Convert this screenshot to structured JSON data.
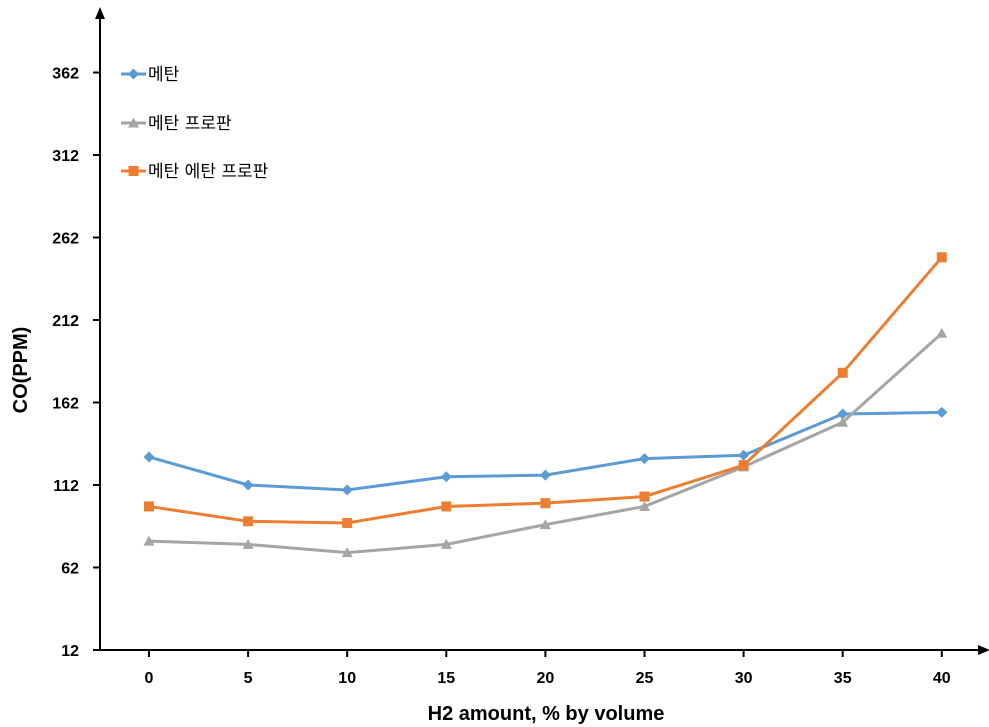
{
  "chart_data": {
    "type": "line",
    "xlabel": "H2 amount, % by volume",
    "ylabel": "CO(PPM)",
    "categories": [
      "0",
      "5",
      "10",
      "15",
      "20",
      "25",
      "30",
      "35",
      "40"
    ],
    "y_ticks": [
      "12",
      "62",
      "112",
      "162",
      "212",
      "262",
      "312",
      "362"
    ],
    "ylim": [
      12,
      392
    ],
    "grid": false,
    "legend_position": "top-left",
    "series": [
      {
        "name": "메탄",
        "marker": "diamond",
        "color": "#5B9BD5",
        "values": [
          129,
          112,
          109,
          117,
          118,
          128,
          130,
          155,
          156
        ]
      },
      {
        "name": "메탄 프로판",
        "marker": "triangle",
        "color": "#A5A5A5",
        "values": [
          78,
          76,
          71,
          76,
          88,
          99,
          123,
          150,
          204
        ]
      },
      {
        "name": "메탄 에탄 프로판",
        "marker": "square",
        "color": "#ED7D31",
        "values": [
          99,
          90,
          89,
          99,
          101,
          105,
          124,
          180,
          250
        ]
      }
    ]
  }
}
